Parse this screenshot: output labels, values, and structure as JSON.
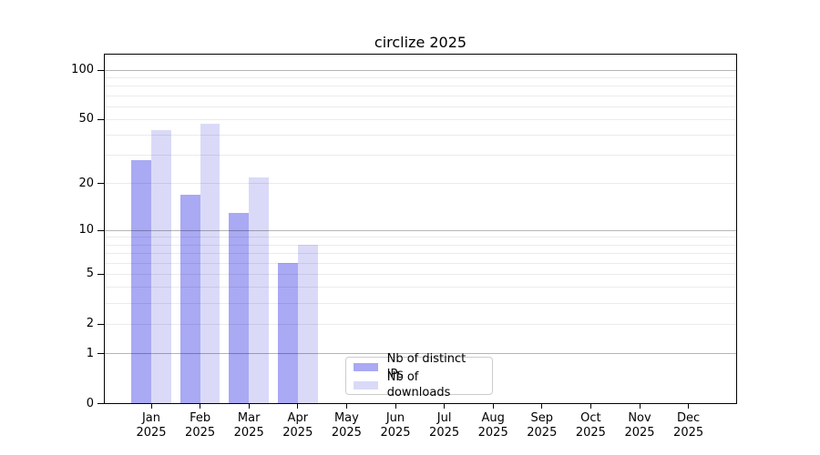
{
  "chart_data": {
    "type": "bar",
    "title": "circlize 2025",
    "categories": [
      "Jan",
      "Feb",
      "Mar",
      "Apr",
      "May",
      "Jun",
      "Jul",
      "Aug",
      "Sep",
      "Oct",
      "Nov",
      "Dec"
    ],
    "year_label": "2025",
    "series": [
      {
        "name": "Nb of distinct IPs",
        "color": "#a9a9f4",
        "values": [
          28,
          17,
          13,
          6,
          0,
          0,
          0,
          0,
          0,
          0,
          0,
          0
        ]
      },
      {
        "name": "Nb of downloads",
        "color": "#dadaf8",
        "values": [
          43,
          47,
          22,
          8,
          0,
          0,
          0,
          0,
          0,
          0,
          0,
          0
        ]
      }
    ],
    "yscale": "log1p",
    "ylim": [
      0,
      100
    ],
    "ytick_labels": [
      "0",
      "1",
      "2",
      "5",
      "10",
      "20",
      "50",
      "100"
    ],
    "ytick_values": [
      0,
      1,
      2,
      5,
      10,
      20,
      50,
      100
    ],
    "major_grid_values": [
      1,
      10,
      100
    ],
    "minor_grid_values": [
      2,
      3,
      4,
      5,
      6,
      7,
      8,
      9,
      20,
      30,
      40,
      50,
      60,
      70,
      80,
      90
    ],
    "grid": "on",
    "legend_position": "bottom-center",
    "colors": {
      "bar_distinct_ips": "#a9a9f4",
      "bar_downloads": "#dadaf8",
      "major_grid": "rgba(0,0,0,0.29)",
      "minor_grid": "rgba(0,0,0,0.08)",
      "spine": "#000000",
      "tick": "#000000",
      "text": "#000000"
    }
  }
}
